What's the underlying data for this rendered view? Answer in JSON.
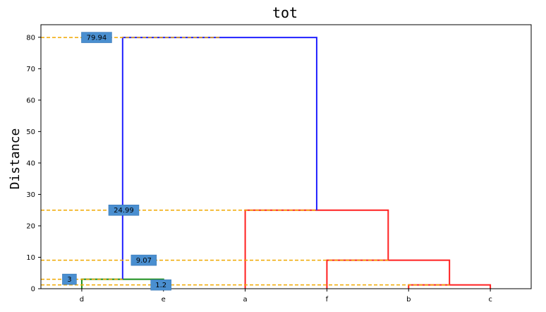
{
  "chart_data": {
    "type": "dendrogram",
    "title": "tot",
    "ylabel": "Distance",
    "xlabel": "",
    "ylim": [
      0,
      84
    ],
    "yticks": [
      0,
      10,
      20,
      30,
      40,
      50,
      60,
      70,
      80
    ],
    "leaves": [
      "d",
      "e",
      "a",
      "f",
      "b",
      "c"
    ],
    "merges": [
      {
        "left": "b",
        "right": "c",
        "height": 1.2,
        "color": "#ff2020"
      },
      {
        "left": "f",
        "right": "b+c",
        "height": 9.07,
        "color": "#ff2020"
      },
      {
        "left": "a",
        "right": "f+b+c",
        "height": 24.99,
        "color": "#ff2020"
      },
      {
        "left": "d",
        "right": "e",
        "height": 3,
        "color": "#1a8f1a"
      },
      {
        "left": "d+e",
        "right": "a+f+b+c",
        "height": 79.94,
        "color": "#2020ff"
      }
    ],
    "annotations": [
      {
        "label": "79.94",
        "value": 79.94
      },
      {
        "label": "24.99",
        "value": 24.99
      },
      {
        "label": "9.07",
        "value": 9.07
      },
      {
        "label": "3",
        "value": 3
      },
      {
        "label": "1.2",
        "value": 1.2
      }
    ],
    "guide_color": "#f0a800",
    "label_box_color": "#4a8fd0",
    "grid": false
  }
}
